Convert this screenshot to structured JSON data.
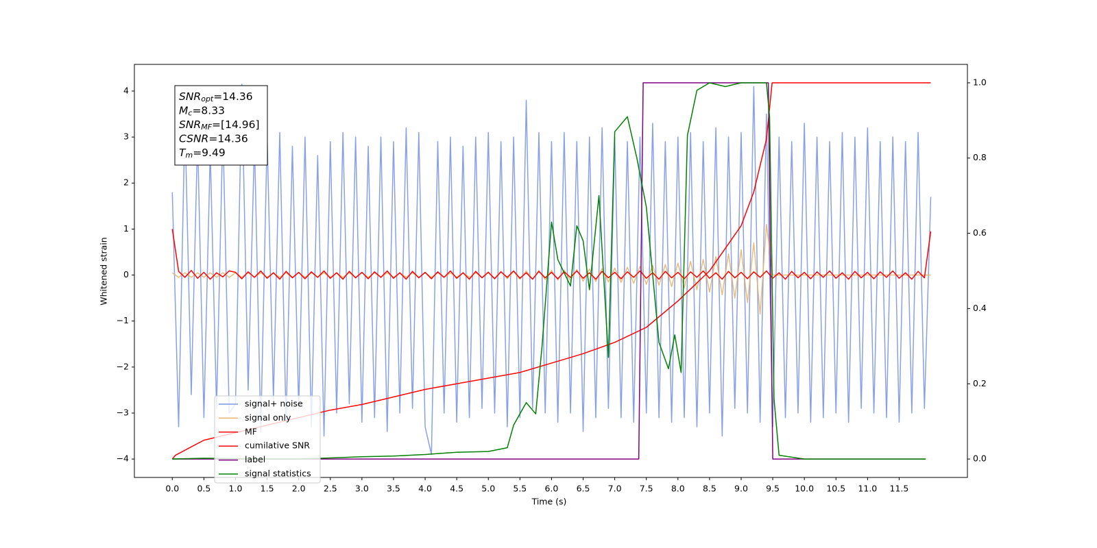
{
  "chart_data": {
    "type": "line",
    "xlabel": "Time (s)",
    "ylabel": "Whitened strain",
    "xlim": [
      -0.6,
      12.58
    ],
    "ylim": [
      -4.4,
      4.58
    ],
    "y2lim": [
      -0.049,
      1.049
    ],
    "xticks": [
      {
        "value": 0,
        "label": "0.0"
      },
      {
        "value": 0.5,
        "label": "0.5"
      },
      {
        "value": 1,
        "label": "1.0"
      },
      {
        "value": 1.5,
        "label": "1.5"
      },
      {
        "value": 2,
        "label": "2.0"
      },
      {
        "value": 2.5,
        "label": "2.5"
      },
      {
        "value": 3,
        "label": "3.0"
      },
      {
        "value": 3.5,
        "label": "3.5"
      },
      {
        "value": 4,
        "label": "4.0"
      },
      {
        "value": 4.5,
        "label": "4.5"
      },
      {
        "value": 5,
        "label": "5.0"
      },
      {
        "value": 5.5,
        "label": "5.5"
      },
      {
        "value": 6,
        "label": "6.0"
      },
      {
        "value": 6.5,
        "label": "6.5"
      },
      {
        "value": 7,
        "label": "7.0"
      },
      {
        "value": 7.5,
        "label": "7.5"
      },
      {
        "value": 8,
        "label": "8.0"
      },
      {
        "value": 8.5,
        "label": "8.5"
      },
      {
        "value": 9,
        "label": "9.0"
      },
      {
        "value": 9.5,
        "label": "9.5"
      },
      {
        "value": 10,
        "label": "10.0"
      },
      {
        "value": 10.5,
        "label": "10.5"
      },
      {
        "value": 11,
        "label": "11.0"
      },
      {
        "value": 11.5,
        "label": "11.5"
      }
    ],
    "yticks": [
      {
        "value": -4,
        "label": "−4"
      },
      {
        "value": -3,
        "label": "−3"
      },
      {
        "value": -2,
        "label": "−2"
      },
      {
        "value": -1,
        "label": "−1"
      },
      0,
      1,
      2,
      3,
      4
    ],
    "y2ticks": [
      {
        "value": 0,
        "label": "0.0"
      },
      {
        "value": 0.2,
        "label": "0.2"
      },
      {
        "value": 0.4,
        "label": "0.4"
      },
      {
        "value": 0.6,
        "label": "0.6"
      },
      {
        "value": 0.8,
        "label": "0.8"
      },
      {
        "value": 1,
        "label": "1.0"
      }
    ],
    "legend": "lower left",
    "annotation": [
      {
        "symbol": "SNR",
        "subscript": "opt",
        "text": "=14.36"
      },
      {
        "symbol": "M",
        "subscript": "c",
        "text": "=8.33"
      },
      {
        "symbol": "SNR",
        "subscript": "MF",
        "text": "=[14.96]"
      },
      {
        "symbol": "CSNR",
        "text": "=14.36"
      },
      {
        "symbol": "T",
        "subscript": "m",
        "text": "=9.49"
      }
    ],
    "x": [
      0,
      0.1,
      0.2,
      0.3,
      0.4,
      0.5,
      0.6,
      0.7,
      0.8,
      0.9,
      1,
      1.1,
      1.2,
      1.3,
      1.4,
      1.5,
      1.6,
      1.7,
      1.8,
      1.9,
      2,
      2.1,
      2.2,
      2.3,
      2.4,
      2.5,
      2.6,
      2.7,
      2.8,
      2.9,
      3,
      3.1,
      3.2,
      3.3,
      3.4,
      3.5,
      3.6,
      3.7,
      3.8,
      3.9,
      4,
      4.1,
      4.2,
      4.3,
      4.4,
      4.5,
      4.6,
      4.7,
      4.8,
      4.9,
      5,
      5.1,
      5.2,
      5.3,
      5.4,
      5.5,
      5.6,
      5.7,
      5.8,
      5.9,
      6,
      6.1,
      6.2,
      6.3,
      6.4,
      6.5,
      6.6,
      6.7,
      6.8,
      6.9,
      7,
      7.1,
      7.2,
      7.3,
      7.4,
      7.5,
      7.6,
      7.7,
      7.8,
      7.9,
      8,
      8.1,
      8.2,
      8.3,
      8.4,
      8.5,
      8.6,
      8.7,
      8.8,
      8.9,
      9,
      9.1,
      9.2,
      9.3,
      9.4,
      9.5,
      9.6,
      9.7,
      9.8,
      9.9,
      10,
      10.1,
      10.2,
      10.3,
      10.4,
      10.5,
      10.6,
      10.7,
      10.8,
      10.9,
      11,
      11.1,
      11.2,
      11.3,
      11.4,
      11.5,
      11.6,
      11.7,
      11.8,
      11.9,
      12
    ],
    "series": [
      {
        "name": "signal+ noise",
        "color": "#7b96e6",
        "values": [
          1.8,
          -3.3,
          3.4,
          -2.6,
          3.0,
          -3.1,
          2.7,
          -2.9,
          3.2,
          -3.0,
          -2.8,
          4.15,
          -2.5,
          2.9,
          -3.4,
          3.0,
          -2.7,
          3.1,
          -3.2,
          2.8,
          -2.9,
          3.0,
          -3.3,
          2.6,
          -3.5,
          2.9,
          -3.0,
          3.1,
          -2.8,
          3.0,
          -3.2,
          2.8,
          -3.1,
          3.0,
          -3.4,
          2.9,
          -3.0,
          3.2,
          -2.9,
          3.1,
          -3.3,
          -3.9,
          2.9,
          -3.0,
          3.0,
          -3.2,
          2.8,
          -3.1,
          3.0,
          -2.9,
          3.1,
          -3.0,
          2.9,
          -3.3,
          3.0,
          -3.1,
          3.8,
          -2.9,
          3.1,
          -3.0,
          2.9,
          -3.2,
          3.1,
          -3.0,
          2.9,
          -3.4,
          3.0,
          -3.1,
          3.2,
          -2.9,
          3.0,
          -3.1,
          2.9,
          -3.2,
          3.0,
          -3.0,
          3.3,
          -3.1,
          2.9,
          -3.2,
          3.0,
          -3.1,
          3.1,
          -3.3,
          2.9,
          -3.0,
          3.2,
          -3.5,
          3.0,
          -2.9,
          3.1,
          -3.0,
          4.1,
          -3.2,
          3.5,
          -3.3,
          3.0,
          -3.1,
          2.9,
          -3.0,
          3.3,
          -3.2,
          3.0,
          -3.1,
          2.9,
          -3.0,
          3.1,
          -3.2,
          3.0,
          -2.9,
          3.2,
          -3.0,
          2.9,
          -3.1,
          3.0,
          -3.2,
          2.9,
          -3.0,
          3.1,
          -2.9,
          1.7
        ]
      },
      {
        "name": "signal only",
        "color": "#e8b46a",
        "values": [
          0.05,
          -0.05,
          0.05,
          -0.05,
          0.05,
          -0.05,
          0.05,
          -0.05,
          0.05,
          -0.05,
          0.05,
          -0.05,
          0.05,
          -0.05,
          0.05,
          -0.05,
          0.05,
          -0.05,
          0.05,
          -0.05,
          0.05,
          -0.05,
          0.05,
          -0.05,
          0.05,
          -0.05,
          0.05,
          -0.05,
          0.05,
          -0.05,
          0.05,
          -0.05,
          0.05,
          -0.05,
          0.05,
          -0.05,
          0.05,
          -0.05,
          0.05,
          -0.05,
          0.05,
          -0.05,
          0.05,
          -0.05,
          0.05,
          -0.05,
          0.05,
          -0.05,
          0.05,
          -0.05,
          0.07,
          -0.07,
          0.08,
          -0.08,
          0.08,
          -0.09,
          0.09,
          -0.09,
          0.1,
          -0.1,
          0.1,
          -0.11,
          0.11,
          -0.12,
          0.12,
          -0.13,
          0.13,
          -0.14,
          0.14,
          -0.15,
          0.15,
          -0.16,
          0.17,
          -0.18,
          0.19,
          -0.2,
          0.21,
          -0.22,
          0.23,
          -0.25,
          0.26,
          -0.28,
          0.3,
          -0.32,
          0.34,
          -0.37,
          0.4,
          -0.43,
          0.46,
          -0.5,
          0.55,
          -0.6,
          0.7,
          -0.85,
          1.1,
          0,
          0,
          0,
          0,
          0,
          0,
          0,
          0,
          0,
          0,
          0,
          0,
          0,
          0,
          0,
          0,
          0,
          0,
          0,
          0,
          0,
          0,
          0,
          0,
          0,
          0
        ]
      },
      {
        "name": "MF",
        "color": "#ff0000",
        "values": [
          1.0,
          0.08,
          -0.05,
          0.1,
          -0.07,
          0.06,
          -0.09,
          0.05,
          -0.04,
          0.09,
          0.06,
          -0.08,
          0.07,
          -0.05,
          0.09,
          -0.07,
          0.05,
          -0.09,
          0.08,
          -0.06,
          0.06,
          -0.08,
          0.07,
          -0.05,
          0.09,
          -0.07,
          0.05,
          -0.09,
          0.08,
          -0.06,
          0.06,
          -0.08,
          0.07,
          -0.05,
          0.09,
          -0.07,
          0.05,
          -0.09,
          0.08,
          -0.06,
          0.06,
          -0.08,
          0.07,
          -0.05,
          0.09,
          -0.07,
          0.05,
          -0.09,
          0.08,
          -0.06,
          0.06,
          -0.08,
          0.07,
          -0.05,
          0.09,
          -0.07,
          0.05,
          -0.09,
          0.08,
          -0.06,
          0.06,
          -0.08,
          0.07,
          -0.05,
          0.09,
          -0.07,
          0.05,
          -0.09,
          0.08,
          -0.06,
          0.06,
          -0.08,
          0.07,
          -0.05,
          0.09,
          -0.07,
          0.05,
          -0.09,
          0.08,
          -0.06,
          0.06,
          -0.08,
          0.07,
          -0.05,
          0.09,
          -0.07,
          0.05,
          -0.09,
          0.08,
          -0.06,
          0.06,
          -0.08,
          0.07,
          -0.05,
          0.09,
          -0.07,
          0.05,
          -0.09,
          0.08,
          -0.06,
          0.06,
          -0.08,
          0.07,
          -0.05,
          0.09,
          -0.07,
          0.05,
          -0.09,
          0.08,
          -0.06,
          0.06,
          -0.08,
          0.07,
          -0.05,
          0.09,
          -0.07,
          0.05,
          -0.09,
          0.08,
          -0.06,
          0.95
        ]
      },
      {
        "name": "cumilative SNR",
        "color": "#ff0000",
        "axis": "y2",
        "x": [
          0,
          0.05,
          0.5,
          1,
          1.5,
          2,
          2.5,
          3,
          3.5,
          4,
          4.5,
          5,
          5.5,
          6,
          6.5,
          7,
          7.5,
          8,
          8.5,
          9,
          9.2,
          9.4,
          9.49,
          9.5,
          12
        ],
        "values": [
          0,
          0.01,
          0.05,
          0.07,
          0.09,
          0.11,
          0.13,
          0.145,
          0.165,
          0.185,
          0.2,
          0.215,
          0.23,
          0.255,
          0.28,
          0.31,
          0.35,
          0.42,
          0.5,
          0.62,
          0.71,
          0.85,
          1.0,
          1.0,
          1.0
        ]
      },
      {
        "name": "label",
        "color": "#800080",
        "axis": "y2",
        "x": [
          0,
          7.38,
          7.45,
          9.43,
          9.5,
          11.92
        ],
        "values": [
          0,
          0,
          1,
          1,
          0,
          0
        ]
      },
      {
        "name": "signal statistics",
        "color": "#008000",
        "axis": "y2",
        "x": [
          0,
          0.5,
          1,
          1.5,
          2,
          2.5,
          3,
          3.5,
          4,
          4.5,
          5,
          5.3,
          5.4,
          5.6,
          5.75,
          5.85,
          6.0,
          6.1,
          6.3,
          6.4,
          6.5,
          6.6,
          6.75,
          6.9,
          7.0,
          7.2,
          7.35,
          7.5,
          7.7,
          7.85,
          7.95,
          8.05,
          8.15,
          8.3,
          8.5,
          8.75,
          9.0,
          9.4,
          9.45,
          9.52,
          9.6,
          10,
          11.92
        ],
        "values": [
          0,
          0.002,
          0.001,
          0,
          0,
          0.003,
          0.006,
          0.008,
          0.012,
          0.018,
          0.02,
          0.03,
          0.09,
          0.15,
          0.12,
          0.3,
          0.63,
          0.53,
          0.46,
          0.62,
          0.58,
          0.45,
          0.7,
          0.27,
          0.87,
          0.91,
          0.8,
          0.67,
          0.31,
          0.24,
          0.33,
          0.23,
          0.86,
          0.98,
          1.0,
          0.99,
          1.0,
          1.0,
          0.91,
          0.16,
          0.01,
          0,
          0
        ]
      }
    ]
  }
}
